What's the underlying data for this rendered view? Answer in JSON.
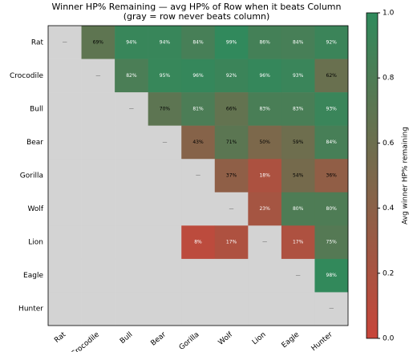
{
  "chart_data": {
    "type": "heatmap",
    "title": "Winner HP% Remaining — avg HP% of Row when it beats Column",
    "subtitle": "(gray = row never beats column)",
    "rows": [
      "Rat",
      "Crocodile",
      "Bull",
      "Bear",
      "Gorilla",
      "Wolf",
      "Lion",
      "Eagle",
      "Hunter"
    ],
    "columns": [
      "Rat",
      "Crocodile",
      "Bull",
      "Bear",
      "Gorilla",
      "Wolf",
      "Lion",
      "Eagle",
      "Hunter"
    ],
    "values": [
      [
        null,
        0.69,
        0.94,
        0.94,
        0.84,
        0.99,
        0.86,
        0.84,
        0.92
      ],
      [
        null,
        null,
        0.82,
        0.95,
        0.96,
        0.92,
        0.96,
        0.93,
        0.62
      ],
      [
        null,
        null,
        null,
        0.7,
        0.81,
        0.66,
        0.83,
        0.83,
        0.93
      ],
      [
        null,
        null,
        null,
        null,
        0.43,
        0.71,
        0.5,
        0.59,
        0.84
      ],
      [
        null,
        null,
        null,
        null,
        null,
        0.37,
        0.18,
        0.54,
        0.36
      ],
      [
        null,
        null,
        null,
        null,
        null,
        null,
        0.23,
        0.8,
        0.8
      ],
      [
        null,
        null,
        null,
        null,
        0.08,
        0.17,
        null,
        0.17,
        0.75
      ],
      [
        null,
        null,
        null,
        null,
        null,
        null,
        null,
        null,
        0.98
      ],
      [
        null,
        null,
        null,
        null,
        null,
        null,
        null,
        null,
        null
      ]
    ],
    "value_labels": [
      [
        "—",
        "69%",
        "94%",
        "94%",
        "84%",
        "99%",
        "86%",
        "84%",
        "92%"
      ],
      [
        null,
        "—",
        "82%",
        "95%",
        "96%",
        "92%",
        "96%",
        "93%",
        "62%"
      ],
      [
        null,
        null,
        "—",
        "70%",
        "81%",
        "66%",
        "83%",
        "83%",
        "93%"
      ],
      [
        null,
        null,
        null,
        "—",
        "43%",
        "71%",
        "50%",
        "59%",
        "84%"
      ],
      [
        null,
        null,
        null,
        null,
        "—",
        "37%",
        "18%",
        "54%",
        "36%"
      ],
      [
        null,
        null,
        null,
        null,
        null,
        "—",
        "23%",
        "80%",
        "80%"
      ],
      [
        null,
        null,
        null,
        null,
        "8%",
        "17%",
        "—",
        "17%",
        "75%"
      ],
      [
        null,
        null,
        null,
        null,
        null,
        null,
        null,
        "—",
        "98%"
      ],
      [
        null,
        null,
        null,
        null,
        null,
        null,
        null,
        null,
        "—"
      ]
    ],
    "colorbar_label": "Avg winner HP% remaining",
    "clim": [
      0,
      1
    ],
    "cticks": [
      {
        "value": 0,
        "label": "0.0"
      },
      0.2,
      0.4,
      0.6,
      0.8,
      {
        "value": 1,
        "label": "1.0"
      }
    ],
    "colormap": [
      "#c8453a",
      "#2f8a5c"
    ],
    "missing_color": "#d3d3d3"
  }
}
